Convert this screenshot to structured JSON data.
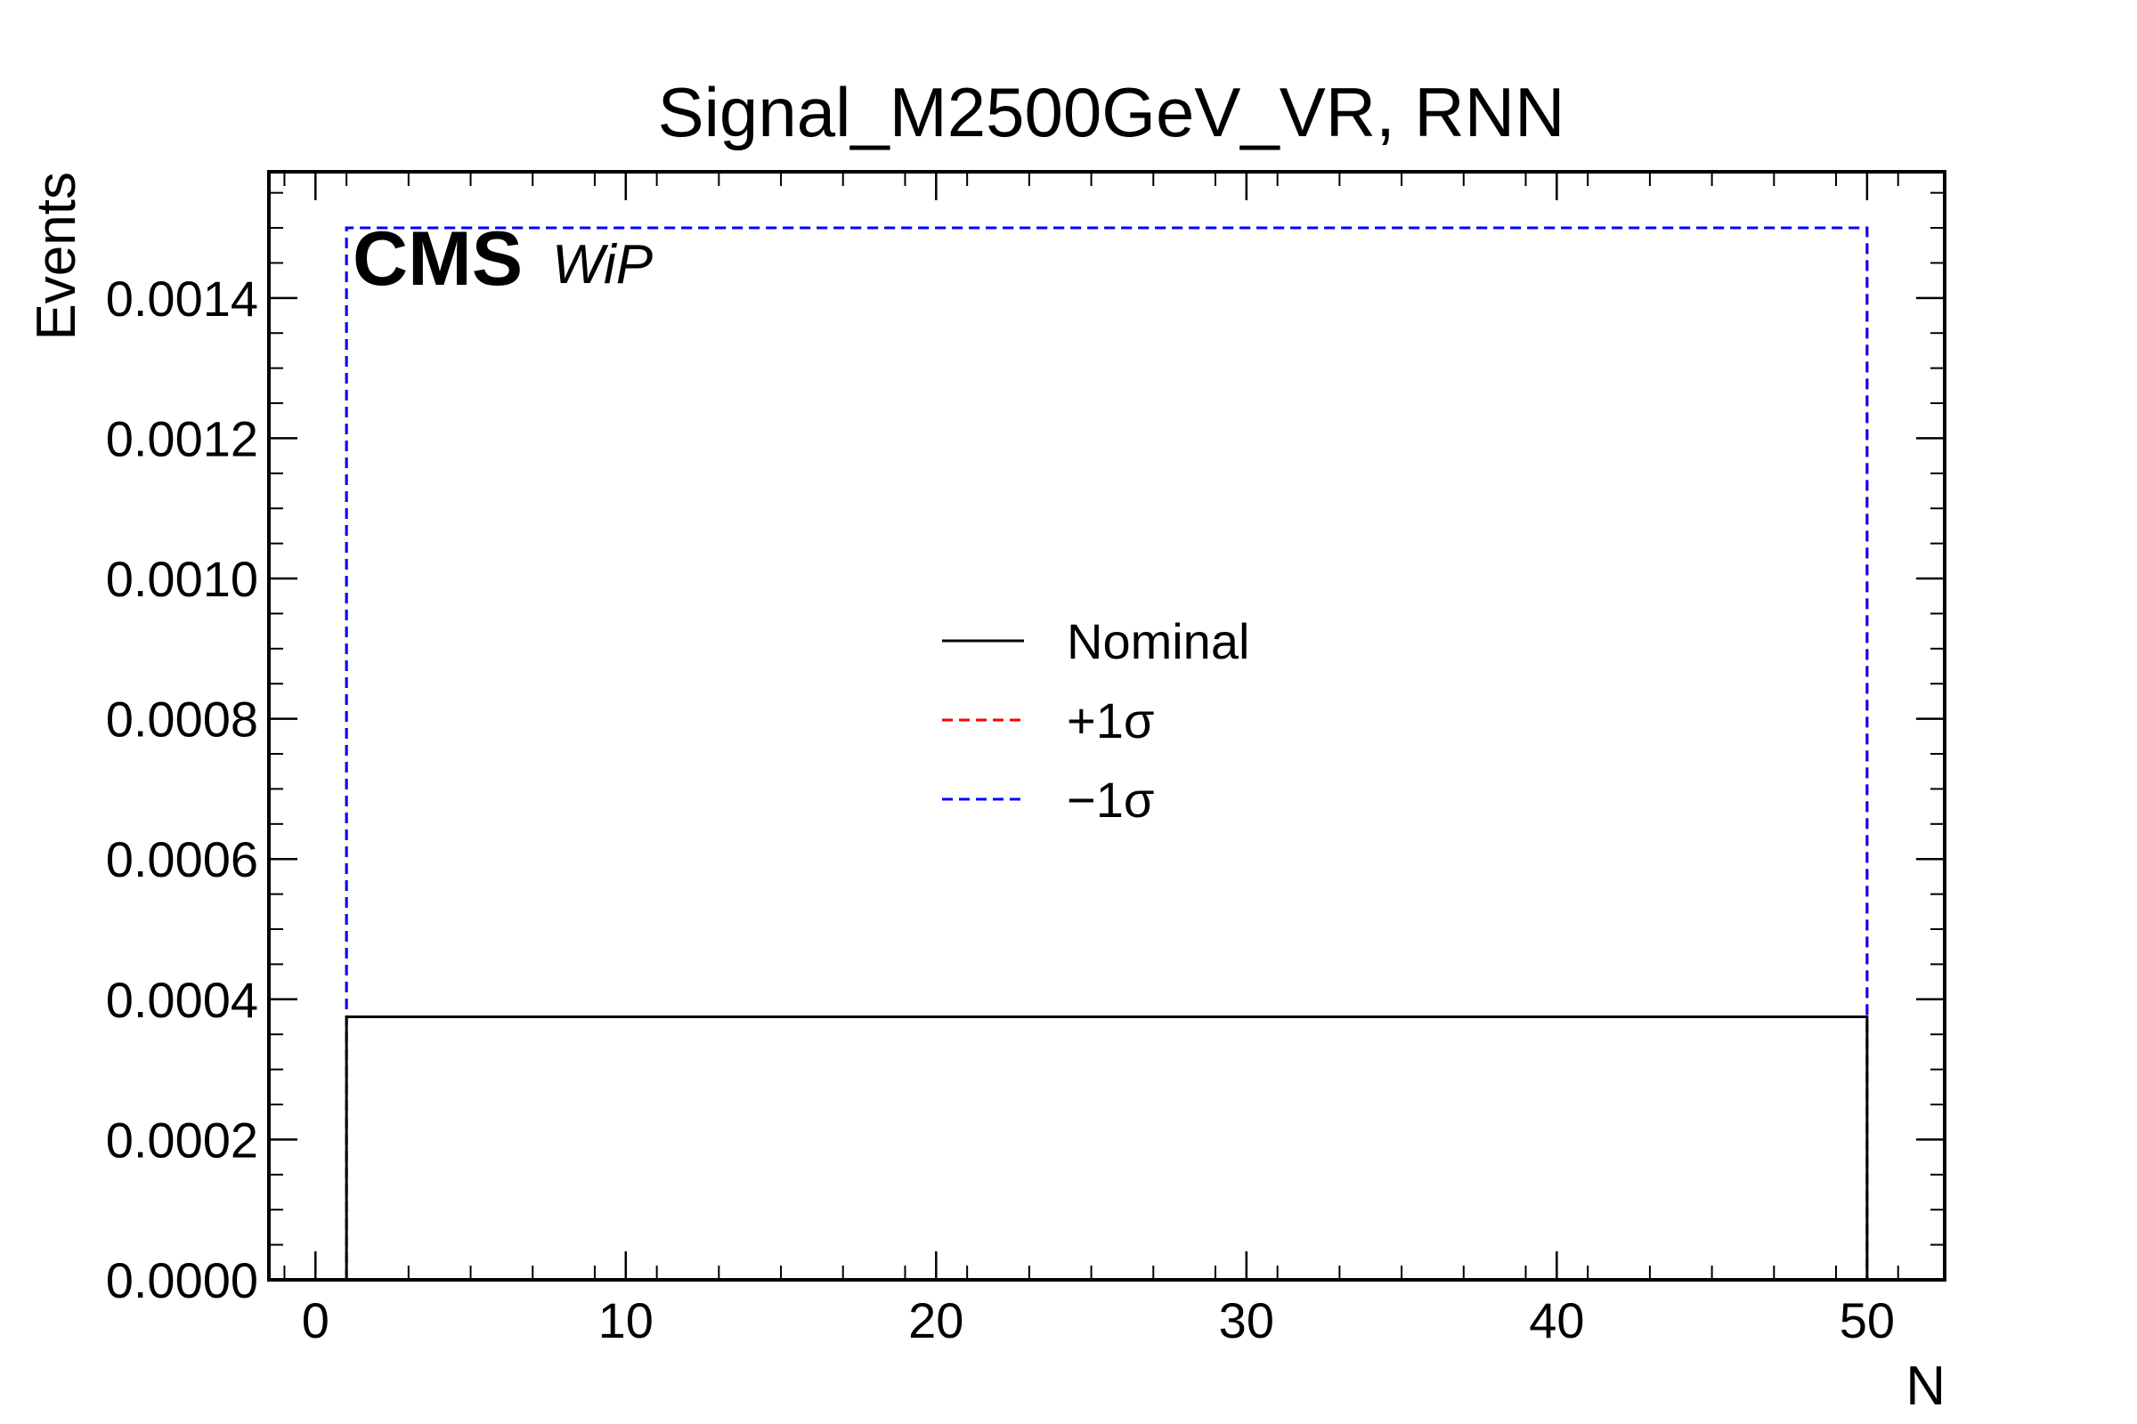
{
  "chart_data": {
    "type": "line",
    "title": "Signal_M2500GeV_VR, RNN",
    "xlabel": "N",
    "ylabel": "Events",
    "xlim": [
      -1.5,
      52.5
    ],
    "ylim": [
      0,
      0.00158
    ],
    "xticks": [
      0,
      10,
      20,
      30,
      40,
      50
    ],
    "xtick_labels": [
      "0",
      "10",
      "20",
      "30",
      "40",
      "50"
    ],
    "yticks": [
      0,
      0.0002,
      0.0004,
      0.0006,
      0.0008,
      0.001,
      0.0012,
      0.0014
    ],
    "ytick_labels": [
      "0.0000",
      "0.0002",
      "0.0004",
      "0.0006",
      "0.0008",
      "0.0010",
      "0.0012",
      "0.0014"
    ],
    "grid": false,
    "legend_position": "center",
    "experiment_label": "CMS",
    "experiment_sublabel": "WiP",
    "series": [
      {
        "name": "Nominal",
        "color": "#000000",
        "style": "solid",
        "bin_edges": [
          1,
          50
        ],
        "values": [
          0.000375
        ]
      },
      {
        "name": "+1σ",
        "color": "#ff0000",
        "style": "dashed",
        "bin_edges": [
          1,
          50
        ],
        "values": [
          0.0015
        ]
      },
      {
        "name": "−1σ",
        "color": "#0000ff",
        "style": "dashed",
        "bin_edges": [
          1,
          50
        ],
        "values": [
          0.0015
        ]
      }
    ]
  }
}
